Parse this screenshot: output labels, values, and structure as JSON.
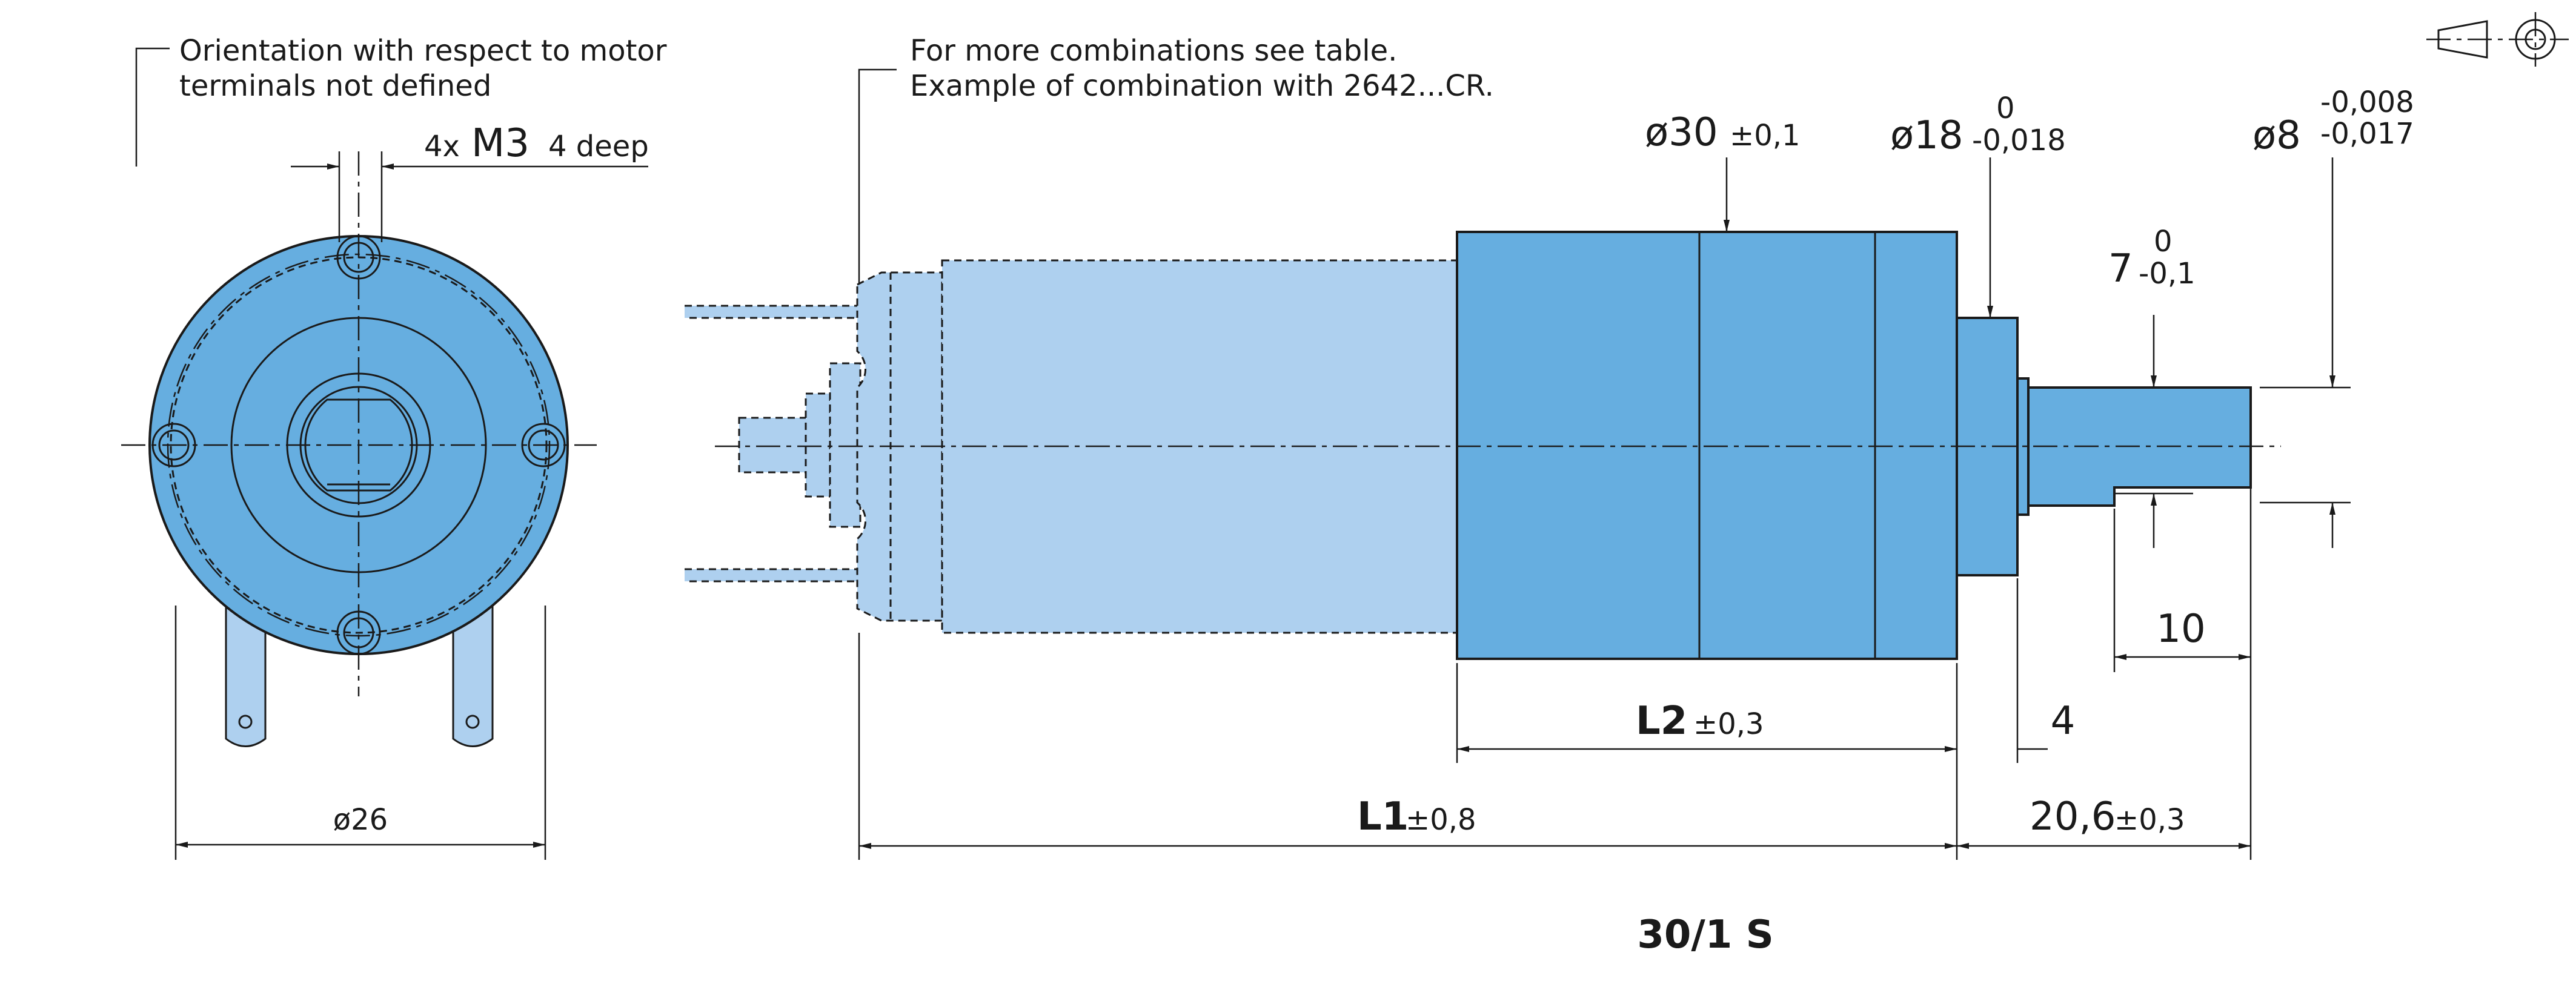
{
  "notes": {
    "orientation_line1": "Orientation with respect to motor",
    "orientation_line2": "terminals not defined",
    "combinations_line1": "For more combinations see table.",
    "combinations_line2": "Example of combination with 2642...CR."
  },
  "thread": {
    "prefix": "4x",
    "size": "M3",
    "depth": "4 deep"
  },
  "dims": {
    "front_diameter": "ø26",
    "body_diameter": "ø30",
    "body_diameter_tol": "±0,1",
    "pilot_diameter": "ø18",
    "pilot_tol_upper": "0",
    "pilot_tol_lower": "-0,018",
    "shaft_diameter": "ø8",
    "shaft_tol_upper": "-0,008",
    "shaft_tol_lower": "-0,017",
    "flat": "7",
    "flat_tol_upper": "0",
    "flat_tol_lower": "-0,1",
    "flat_length": "10",
    "pilot_length": "4",
    "l2": "L2",
    "l2_tol": "±0,3",
    "l1": "L1",
    "l1_tol": "±0,8",
    "shaft_length": "20,6",
    "shaft_length_tol": "±0,3"
  },
  "model": "30/1 S",
  "colors": {
    "gearhead": "#66aee0",
    "motor": "#aed0ef",
    "line": "#1a1a1a"
  },
  "icons": {
    "projection": "first-angle-projection-symbol"
  }
}
